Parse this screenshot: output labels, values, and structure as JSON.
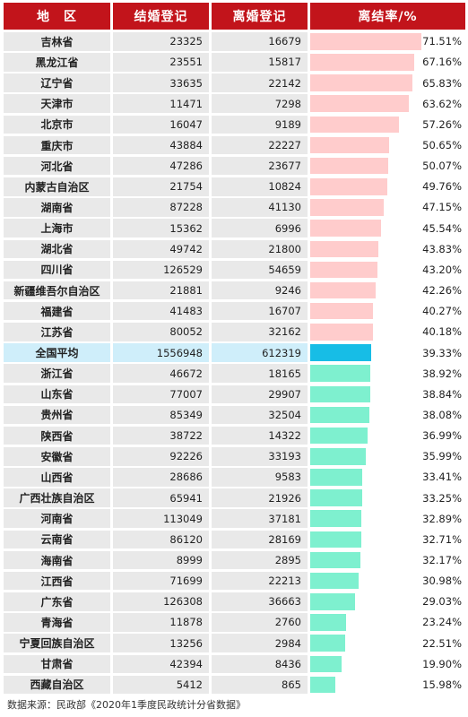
{
  "headers": {
    "region": "地　区",
    "marriage": "结婚登记",
    "divorce": "离婚登记",
    "rate": "离结率/%"
  },
  "source": "数据来源：民政部《2020年1季度民政统计分省数据》",
  "colors": {
    "header": "#c2141b",
    "above_avg_bar": "#ffcccc",
    "avg_bar": "#17bde6",
    "below_avg_bar": "#7ef0cf",
    "avg_row_bg": "#cfeefa"
  },
  "chart_data": {
    "type": "table",
    "columns": [
      "地　区",
      "结婚登记",
      "离婚登记",
      "离结率/%"
    ],
    "rows": [
      {
        "region": "吉林省",
        "marriage": "23325",
        "divorce": "16679",
        "rate": 71.51,
        "rate_label": "71.51%",
        "group": "above"
      },
      {
        "region": "黑龙江省",
        "marriage": "23551",
        "divorce": "15817",
        "rate": 67.16,
        "rate_label": "67.16%",
        "group": "above"
      },
      {
        "region": "辽宁省",
        "marriage": "33635",
        "divorce": "22142",
        "rate": 65.83,
        "rate_label": "65.83%",
        "group": "above"
      },
      {
        "region": "天津市",
        "marriage": "11471",
        "divorce": "7298",
        "rate": 63.62,
        "rate_label": "63.62%",
        "group": "above"
      },
      {
        "region": "北京市",
        "marriage": "16047",
        "divorce": "9189",
        "rate": 57.26,
        "rate_label": "57.26%",
        "group": "above"
      },
      {
        "region": "重庆市",
        "marriage": "43884",
        "divorce": "22227",
        "rate": 50.65,
        "rate_label": "50.65%",
        "group": "above"
      },
      {
        "region": "河北省",
        "marriage": "47286",
        "divorce": "23677",
        "rate": 50.07,
        "rate_label": "50.07%",
        "group": "above"
      },
      {
        "region": "内蒙古自治区",
        "marriage": "21754",
        "divorce": "10824",
        "rate": 49.76,
        "rate_label": "49.76%",
        "group": "above"
      },
      {
        "region": "湖南省",
        "marriage": "87228",
        "divorce": "41130",
        "rate": 47.15,
        "rate_label": "47.15%",
        "group": "above"
      },
      {
        "region": "上海市",
        "marriage": "15362",
        "divorce": "6996",
        "rate": 45.54,
        "rate_label": "45.54%",
        "group": "above"
      },
      {
        "region": "湖北省",
        "marriage": "49742",
        "divorce": "21800",
        "rate": 43.83,
        "rate_label": "43.83%",
        "group": "above"
      },
      {
        "region": "四川省",
        "marriage": "126529",
        "divorce": "54659",
        "rate": 43.2,
        "rate_label": "43.20%",
        "group": "above"
      },
      {
        "region": "新疆维吾尔自治区",
        "marriage": "21881",
        "divorce": "9246",
        "rate": 42.26,
        "rate_label": "42.26%",
        "group": "above"
      },
      {
        "region": "福建省",
        "marriage": "41483",
        "divorce": "16707",
        "rate": 40.27,
        "rate_label": "40.27%",
        "group": "above"
      },
      {
        "region": "江苏省",
        "marriage": "80052",
        "divorce": "32162",
        "rate": 40.18,
        "rate_label": "40.18%",
        "group": "above"
      },
      {
        "region": "全国平均",
        "marriage": "1556948",
        "divorce": "612319",
        "rate": 39.33,
        "rate_label": "39.33%",
        "group": "avg"
      },
      {
        "region": "浙江省",
        "marriage": "46672",
        "divorce": "18165",
        "rate": 38.92,
        "rate_label": "38.92%",
        "group": "below"
      },
      {
        "region": "山东省",
        "marriage": "77007",
        "divorce": "29907",
        "rate": 38.84,
        "rate_label": "38.84%",
        "group": "below"
      },
      {
        "region": "贵州省",
        "marriage": "85349",
        "divorce": "32504",
        "rate": 38.08,
        "rate_label": "38.08%",
        "group": "below"
      },
      {
        "region": "陕西省",
        "marriage": "38722",
        "divorce": "14322",
        "rate": 36.99,
        "rate_label": "36.99%",
        "group": "below"
      },
      {
        "region": "安徽省",
        "marriage": "92226",
        "divorce": "33193",
        "rate": 35.99,
        "rate_label": "35.99%",
        "group": "below"
      },
      {
        "region": "山西省",
        "marriage": "28686",
        "divorce": "9583",
        "rate": 33.41,
        "rate_label": "33.41%",
        "group": "below"
      },
      {
        "region": "广西壮族自治区",
        "marriage": "65941",
        "divorce": "21926",
        "rate": 33.25,
        "rate_label": "33.25%",
        "group": "below"
      },
      {
        "region": "河南省",
        "marriage": "113049",
        "divorce": "37181",
        "rate": 32.89,
        "rate_label": "32.89%",
        "group": "below"
      },
      {
        "region": "云南省",
        "marriage": "86120",
        "divorce": "28169",
        "rate": 32.71,
        "rate_label": "32.71%",
        "group": "below"
      },
      {
        "region": "海南省",
        "marriage": "8999",
        "divorce": "2895",
        "rate": 32.17,
        "rate_label": "32.17%",
        "group": "below"
      },
      {
        "region": "江西省",
        "marriage": "71699",
        "divorce": "22213",
        "rate": 30.98,
        "rate_label": "30.98%",
        "group": "below"
      },
      {
        "region": "广东省",
        "marriage": "126308",
        "divorce": "36663",
        "rate": 29.03,
        "rate_label": "29.03%",
        "group": "below"
      },
      {
        "region": "青海省",
        "marriage": "11878",
        "divorce": "2760",
        "rate": 23.24,
        "rate_label": "23.24%",
        "group": "below"
      },
      {
        "region": "宁夏回族自治区",
        "marriage": "13256",
        "divorce": "2984",
        "rate": 22.51,
        "rate_label": "22.51%",
        "group": "below"
      },
      {
        "region": "甘肃省",
        "marriage": "42394",
        "divorce": "8436",
        "rate": 19.9,
        "rate_label": "19.90%",
        "group": "below"
      },
      {
        "region": "西藏自治区",
        "marriage": "5412",
        "divorce": "865",
        "rate": 15.98,
        "rate_label": "15.98%",
        "group": "below"
      }
    ]
  }
}
